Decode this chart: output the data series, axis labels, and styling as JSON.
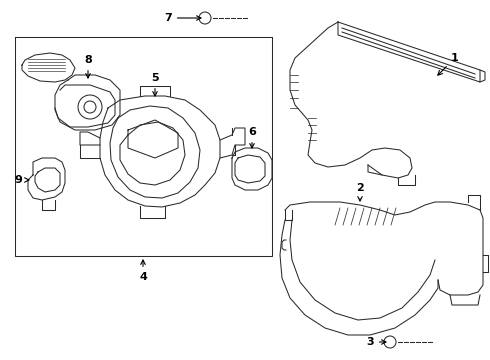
{
  "bg_color": "#ffffff",
  "line_color": "#2a2a2a",
  "fig_width": 4.9,
  "fig_height": 3.6,
  "dpi": 100,
  "lw": 0.75
}
